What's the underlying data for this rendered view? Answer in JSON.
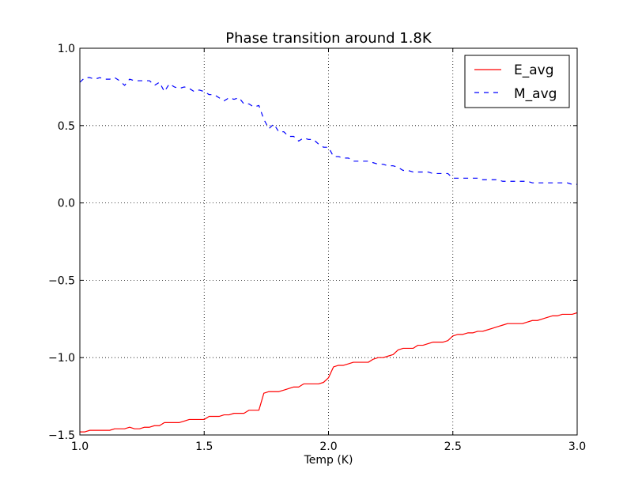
{
  "chart_data": {
    "type": "line",
    "title": "Phase transition around 1.8K",
    "xlabel": "Temp (K)",
    "ylabel": "",
    "xlim": [
      1.0,
      3.0
    ],
    "ylim": [
      -1.5,
      1.0
    ],
    "xticks": [
      1.0,
      1.5,
      2.0,
      2.5,
      3.0
    ],
    "xtick_labels": [
      "1.0",
      "1.5",
      "2.0",
      "2.5",
      "3.0"
    ],
    "yticks": [
      -1.5,
      -1.0,
      -0.5,
      0.0,
      0.5,
      1.0
    ],
    "ytick_labels": [
      "−1.5",
      "−1.0",
      "−0.5",
      "0.0",
      "0.5",
      "1.0"
    ],
    "grid": true,
    "legend_position": "top-right",
    "series": [
      {
        "name": "E_avg",
        "color": "#ff0000",
        "style": "solid",
        "x": [
          1.0,
          1.02,
          1.04,
          1.06,
          1.08,
          1.1,
          1.12,
          1.14,
          1.16,
          1.18,
          1.2,
          1.22,
          1.24,
          1.26,
          1.28,
          1.3,
          1.32,
          1.34,
          1.36,
          1.38,
          1.4,
          1.42,
          1.44,
          1.46,
          1.48,
          1.5,
          1.52,
          1.54,
          1.56,
          1.58,
          1.6,
          1.62,
          1.64,
          1.66,
          1.68,
          1.7,
          1.72,
          1.74,
          1.76,
          1.78,
          1.8,
          1.82,
          1.84,
          1.86,
          1.88,
          1.9,
          1.92,
          1.94,
          1.96,
          1.98,
          2.0,
          2.02,
          2.04,
          2.06,
          2.08,
          2.1,
          2.12,
          2.14,
          2.16,
          2.18,
          2.2,
          2.22,
          2.24,
          2.26,
          2.28,
          2.3,
          2.32,
          2.34,
          2.36,
          2.38,
          2.4,
          2.42,
          2.44,
          2.46,
          2.48,
          2.5,
          2.52,
          2.54,
          2.56,
          2.58,
          2.6,
          2.62,
          2.64,
          2.66,
          2.68,
          2.7,
          2.72,
          2.74,
          2.76,
          2.78,
          2.8,
          2.82,
          2.84,
          2.86,
          2.88,
          2.9,
          2.92,
          2.94,
          2.96,
          2.98,
          3.0
        ],
        "values": [
          -1.48,
          -1.48,
          -1.47,
          -1.47,
          -1.47,
          -1.47,
          -1.47,
          -1.46,
          -1.46,
          -1.46,
          -1.45,
          -1.46,
          -1.46,
          -1.45,
          -1.45,
          -1.44,
          -1.44,
          -1.42,
          -1.42,
          -1.42,
          -1.42,
          -1.41,
          -1.4,
          -1.4,
          -1.4,
          -1.4,
          -1.38,
          -1.38,
          -1.38,
          -1.37,
          -1.37,
          -1.36,
          -1.36,
          -1.36,
          -1.34,
          -1.34,
          -1.34,
          -1.23,
          -1.22,
          -1.22,
          -1.22,
          -1.21,
          -1.2,
          -1.19,
          -1.19,
          -1.17,
          -1.17,
          -1.17,
          -1.17,
          -1.16,
          -1.13,
          -1.06,
          -1.05,
          -1.05,
          -1.04,
          -1.03,
          -1.03,
          -1.03,
          -1.03,
          -1.01,
          -1.0,
          -1.0,
          -0.99,
          -0.98,
          -0.95,
          -0.94,
          -0.94,
          -0.94,
          -0.92,
          -0.92,
          -0.91,
          -0.9,
          -0.9,
          -0.9,
          -0.89,
          -0.86,
          -0.85,
          -0.85,
          -0.84,
          -0.84,
          -0.83,
          -0.83,
          -0.82,
          -0.81,
          -0.8,
          -0.79,
          -0.78,
          -0.78,
          -0.78,
          -0.78,
          -0.77,
          -0.76,
          -0.76,
          -0.75,
          -0.74,
          -0.73,
          -0.73,
          -0.72,
          -0.72,
          -0.72,
          -0.71
        ]
      },
      {
        "name": "M_avg",
        "color": "#0000ff",
        "style": "dashed",
        "x": [
          1.0,
          1.02,
          1.04,
          1.06,
          1.08,
          1.1,
          1.12,
          1.14,
          1.16,
          1.18,
          1.2,
          1.22,
          1.24,
          1.26,
          1.28,
          1.3,
          1.32,
          1.34,
          1.36,
          1.38,
          1.4,
          1.42,
          1.44,
          1.46,
          1.48,
          1.5,
          1.52,
          1.54,
          1.56,
          1.58,
          1.6,
          1.62,
          1.64,
          1.66,
          1.68,
          1.7,
          1.72,
          1.74,
          1.76,
          1.78,
          1.8,
          1.82,
          1.84,
          1.86,
          1.88,
          1.9,
          1.92,
          1.94,
          1.96,
          1.98,
          2.0,
          2.02,
          2.04,
          2.06,
          2.08,
          2.1,
          2.12,
          2.14,
          2.16,
          2.18,
          2.2,
          2.22,
          2.24,
          2.26,
          2.28,
          2.3,
          2.32,
          2.34,
          2.36,
          2.38,
          2.4,
          2.42,
          2.44,
          2.46,
          2.48,
          2.5,
          2.52,
          2.54,
          2.56,
          2.58,
          2.6,
          2.62,
          2.64,
          2.66,
          2.68,
          2.7,
          2.72,
          2.74,
          2.76,
          2.78,
          2.8,
          2.82,
          2.84,
          2.86,
          2.88,
          2.9,
          2.92,
          2.94,
          2.96,
          2.98,
          3.0
        ],
        "values": [
          0.78,
          0.81,
          0.81,
          0.8,
          0.81,
          0.8,
          0.8,
          0.81,
          0.79,
          0.76,
          0.8,
          0.79,
          0.79,
          0.79,
          0.79,
          0.76,
          0.78,
          0.72,
          0.77,
          0.75,
          0.74,
          0.75,
          0.74,
          0.72,
          0.73,
          0.72,
          0.7,
          0.7,
          0.68,
          0.66,
          0.68,
          0.67,
          0.68,
          0.64,
          0.64,
          0.62,
          0.63,
          0.54,
          0.48,
          0.51,
          0.46,
          0.46,
          0.43,
          0.43,
          0.4,
          0.42,
          0.41,
          0.41,
          0.38,
          0.36,
          0.36,
          0.3,
          0.3,
          0.29,
          0.29,
          0.27,
          0.27,
          0.27,
          0.27,
          0.26,
          0.25,
          0.25,
          0.24,
          0.24,
          0.23,
          0.21,
          0.21,
          0.2,
          0.2,
          0.2,
          0.2,
          0.19,
          0.19,
          0.19,
          0.19,
          0.16,
          0.16,
          0.16,
          0.16,
          0.16,
          0.16,
          0.15,
          0.15,
          0.15,
          0.15,
          0.14,
          0.14,
          0.14,
          0.14,
          0.14,
          0.14,
          0.13,
          0.13,
          0.13,
          0.13,
          0.13,
          0.13,
          0.13,
          0.13,
          0.12,
          0.12
        ]
      }
    ]
  }
}
